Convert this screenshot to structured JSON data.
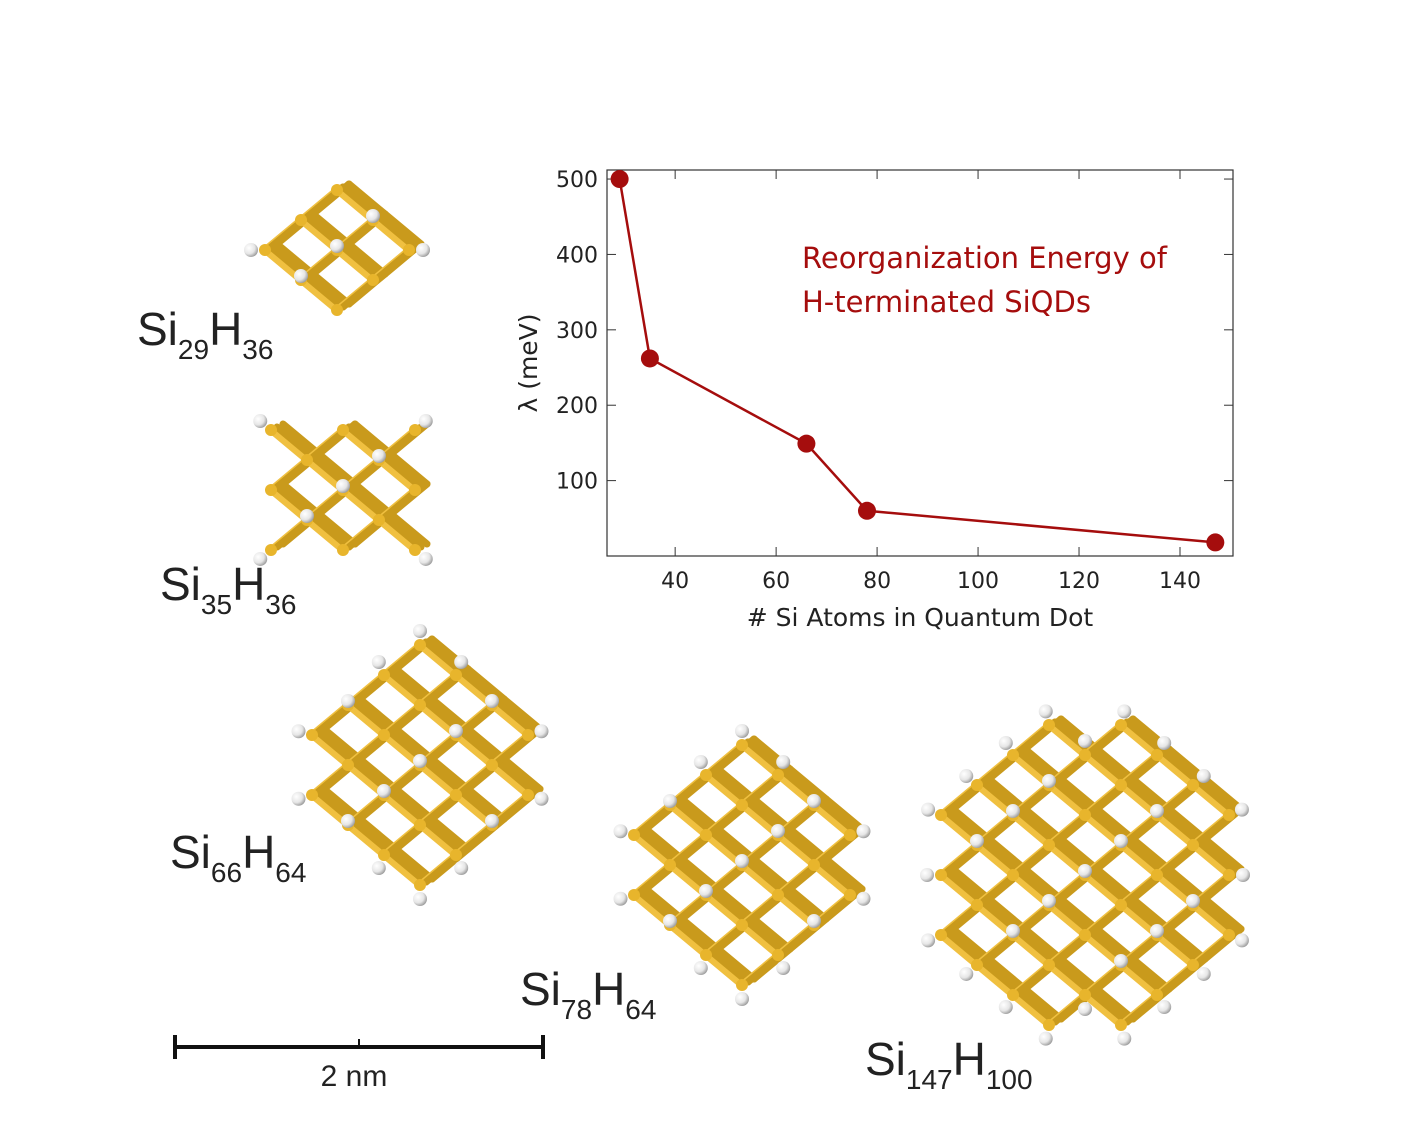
{
  "chart_data": {
    "type": "line",
    "x": [
      29,
      35,
      66,
      78,
      147
    ],
    "values": [
      500,
      262,
      149,
      60,
      18
    ],
    "color": "#a50d0d",
    "xlabel": "# Si Atoms in Quantum Dot",
    "ylabel": "λ (meV)",
    "annotation": [
      "Reorganization Energy of",
      "H-terminated SiQDs"
    ],
    "xlim": [
      26.5,
      150.5
    ],
    "xticks": [
      40,
      60,
      80,
      100,
      120,
      140
    ],
    "ylim": [
      0,
      512
    ],
    "yticks": [
      100,
      200,
      300,
      400,
      500
    ]
  },
  "molecules": [
    {
      "label": [
        "Si",
        "29",
        "H",
        "36"
      ]
    },
    {
      "label": [
        "Si",
        "35",
        "H",
        "36"
      ]
    },
    {
      "label": [
        "Si",
        "66",
        "H",
        "64"
      ]
    },
    {
      "label": [
        "Si",
        "78",
        "H",
        "64"
      ]
    },
    {
      "label": [
        "Si",
        "147",
        "H",
        "100"
      ]
    }
  ],
  "scale_bar": {
    "label": "2 nm"
  }
}
